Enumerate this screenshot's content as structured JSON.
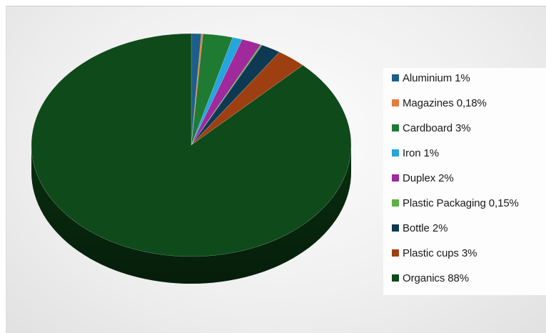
{
  "chart_data": {
    "type": "pie",
    "style": "3d",
    "categories": [
      "Aluminium",
      "Magazines",
      "Cardboard",
      "Iron",
      "Duplex",
      "Plastic Packaging",
      "Bottle",
      "Plastic cups",
      "Organics"
    ],
    "values": [
      1,
      0.18,
      3,
      1,
      2,
      0.15,
      2,
      3,
      88
    ],
    "legend_labels": [
      "Aluminium 1%",
      "Magazines 0,18%",
      "Cardboard 3%",
      "Iron 1%",
      "Duplex 2%",
      "Plastic Packaging 0,15%",
      "Bottle 2%",
      "Plastic cups 3%",
      "Organics 88%"
    ],
    "colors": [
      "#1d5f8a",
      "#e97a3a",
      "#1f7a32",
      "#24a6dd",
      "#a0299b",
      "#5fb043",
      "#0d3a52",
      "#9e3f12",
      "#0f4a1a"
    ],
    "legend_position": "right",
    "title": ""
  }
}
